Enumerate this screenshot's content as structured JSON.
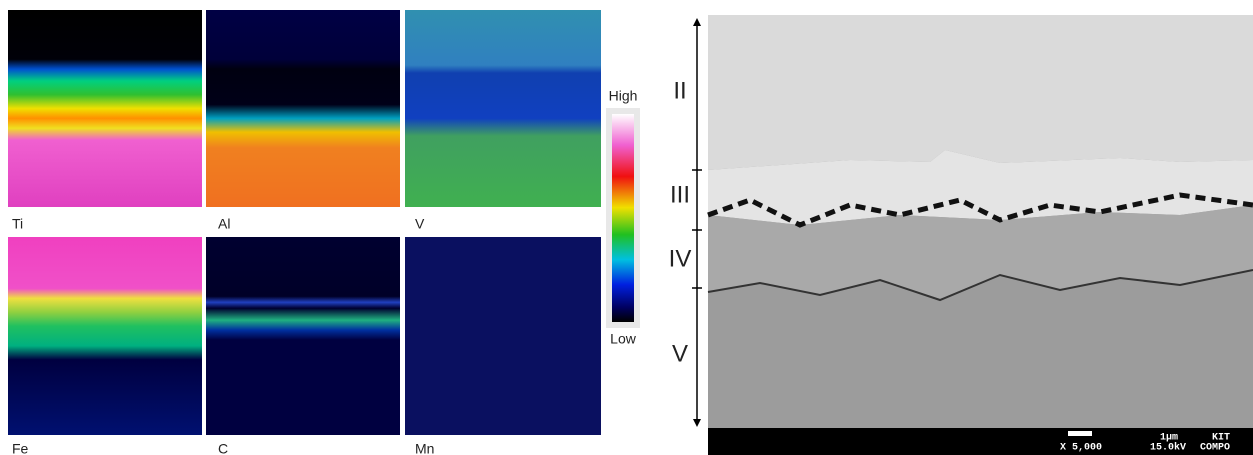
{
  "maps": [
    {
      "label": "Ti"
    },
    {
      "label": "Al"
    },
    {
      "label": "V"
    },
    {
      "label": "Fe"
    },
    {
      "label": "C"
    },
    {
      "label": "Mn"
    }
  ],
  "colorbar": {
    "high": "High",
    "low": "Low"
  },
  "sem": {
    "layers": [
      "II",
      "III",
      "IV",
      "V"
    ],
    "scale": "1μm",
    "lab": "KIT",
    "magnification": "X 5,000",
    "voltage": "15.0kV",
    "mode": "COMPO"
  }
}
